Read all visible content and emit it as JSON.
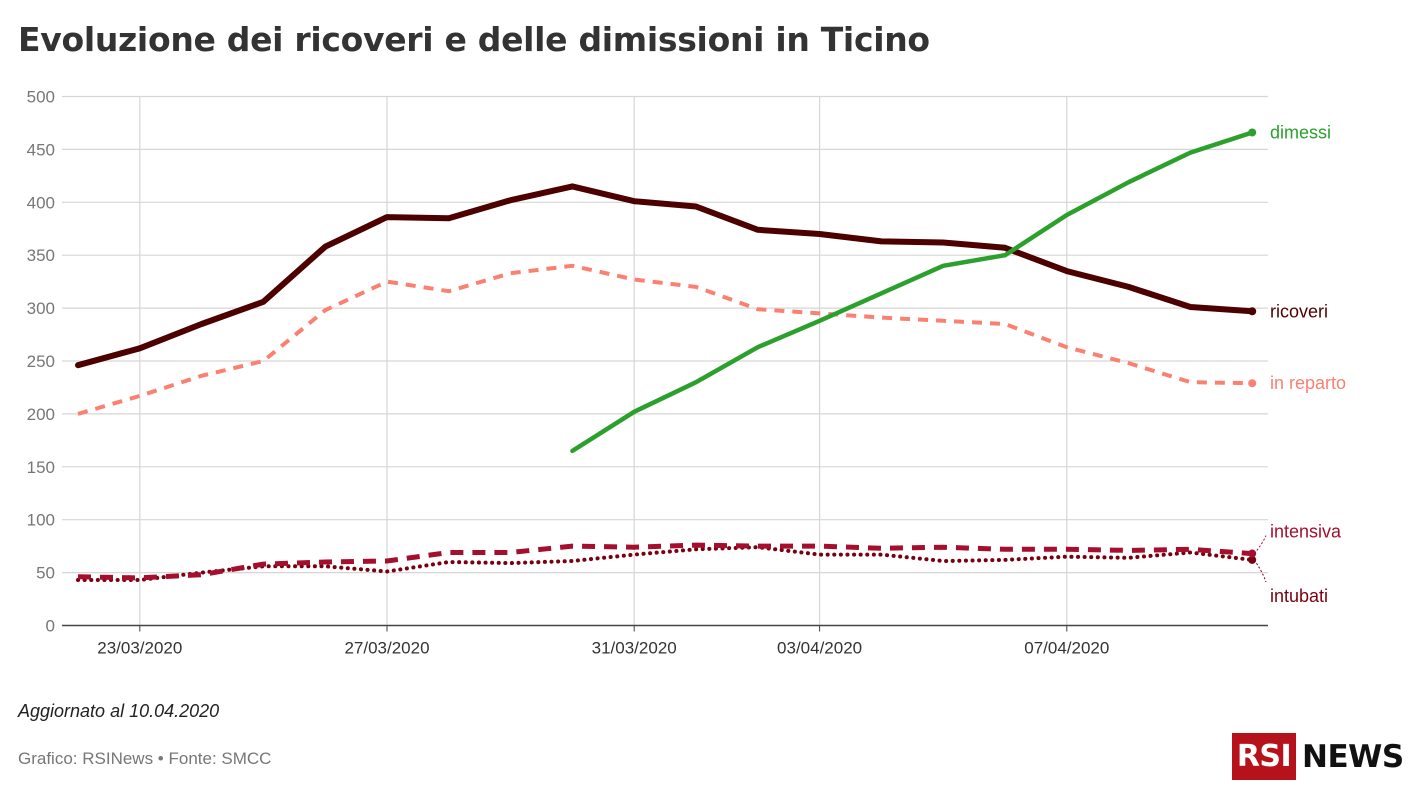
{
  "title": "Evoluzione dei ricoveri e delle dimissioni in Ticino",
  "note": "Aggiornato al 10.04.2020",
  "credits": "Grafico: RSINews • Fonte: SMCC",
  "logo": {
    "box": "RSI",
    "text": "NEWS"
  },
  "chart_data": {
    "type": "line",
    "x": [
      "22/03/2020",
      "23/03/2020",
      "24/03/2020",
      "25/03/2020",
      "26/03/2020",
      "27/03/2020",
      "28/03/2020",
      "29/03/2020",
      "30/03/2020",
      "31/03/2020",
      "01/04/2020",
      "02/04/2020",
      "03/04/2020",
      "04/04/2020",
      "05/04/2020",
      "06/04/2020",
      "07/04/2020",
      "08/04/2020",
      "09/04/2020",
      "10/04/2020"
    ],
    "x_ticks": [
      "23/03/2020",
      "27/03/2020",
      "31/03/2020",
      "03/04/2020",
      "07/04/2020"
    ],
    "ylim": [
      0,
      500
    ],
    "y_ticks": [
      0,
      50,
      100,
      150,
      200,
      250,
      300,
      350,
      400,
      450,
      500
    ],
    "grid": true,
    "legend": "inline labels at line ends (right)",
    "series": [
      {
        "name": "ricoveri",
        "color": "#4d0000",
        "style": "solid-thick",
        "values": [
          246,
          262,
          285,
          306,
          358,
          386,
          385,
          402,
          415,
          401,
          396,
          374,
          370,
          363,
          362,
          357,
          335,
          320,
          301,
          297
        ]
      },
      {
        "name": "in reparto",
        "color": "#fa8072",
        "style": "dashed",
        "values": [
          200,
          217,
          236,
          250,
          298,
          325,
          316,
          333,
          340,
          327,
          320,
          299,
          295,
          291,
          288,
          285,
          263,
          248,
          230,
          229
        ]
      },
      {
        "name": "dimessi",
        "color": "#2ca02c",
        "style": "solid",
        "values": [
          null,
          null,
          null,
          null,
          null,
          null,
          null,
          null,
          165,
          202,
          230,
          263,
          288,
          314,
          340,
          350,
          388,
          419,
          447,
          466
        ]
      },
      {
        "name": "intensiva",
        "color": "#a50f2d",
        "style": "dashed-thick",
        "values": [
          46,
          45,
          48,
          58,
          60,
          61,
          69,
          69,
          75,
          74,
          76,
          75,
          75,
          73,
          74,
          72,
          72,
          71,
          72,
          68
        ]
      },
      {
        "name": "intubati",
        "color": "#7a0010",
        "style": "dotted",
        "values": [
          43,
          43,
          50,
          56,
          56,
          51,
          60,
          59,
          61,
          67,
          72,
          74,
          67,
          67,
          61,
          62,
          65,
          64,
          69,
          62
        ]
      }
    ]
  }
}
